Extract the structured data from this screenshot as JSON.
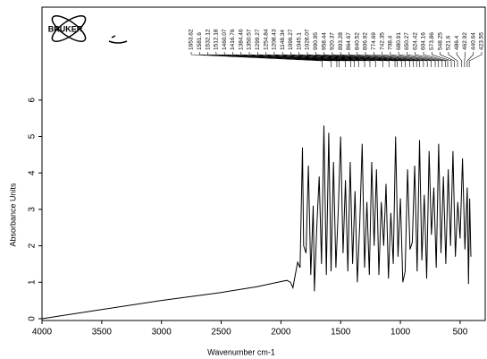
{
  "chart_data": {
    "type": "line",
    "logo": "BRUKER",
    "xlabel": "Wavenumber cm-1",
    "ylabel": "Absorbance Units",
    "xlim": [
      4000,
      290
    ],
    "ylim": [
      -0.05,
      8.55
    ],
    "xticks": [
      4000,
      3500,
      3000,
      2500,
      2000,
      1500,
      1000,
      500
    ],
    "yticks": [
      0,
      1,
      2,
      3,
      4,
      5,
      6
    ],
    "color": "#000000",
    "x": [
      4000,
      3800,
      3500,
      3000,
      2500,
      2200,
      2000,
      1950,
      1920,
      1900,
      1880,
      1860,
      1840,
      1820,
      1810,
      1790,
      1770,
      1750,
      1730,
      1720,
      1700,
      1680,
      1660,
      1640,
      1620,
      1600,
      1580,
      1560,
      1540,
      1520,
      1500,
      1480,
      1460,
      1440,
      1420,
      1400,
      1380,
      1360,
      1340,
      1320,
      1300,
      1280,
      1260,
      1240,
      1220,
      1200,
      1180,
      1160,
      1140,
      1120,
      1100,
      1080,
      1060,
      1040,
      1020,
      1000,
      980,
      960,
      940,
      920,
      900,
      880,
      860,
      840,
      820,
      800,
      780,
      760,
      740,
      720,
      700,
      680,
      660,
      640,
      620,
      600,
      580,
      560,
      540,
      520,
      500,
      480,
      460,
      440,
      430,
      420,
      410
    ],
    "values": [
      0,
      0.1,
      0.25,
      0.5,
      0.72,
      0.88,
      1.02,
      1.05,
      1.0,
      0.85,
      1.2,
      1.55,
      1.4,
      4.7,
      2.0,
      1.8,
      4.2,
      1.2,
      3.1,
      0.75,
      2.5,
      3.9,
      1.5,
      5.3,
      1.2,
      5.1,
      1.3,
      4.3,
      1.4,
      3.0,
      5.0,
      1.8,
      3.8,
      1.3,
      4.3,
      1.5,
      3.5,
      1.0,
      2.6,
      4.8,
      1.4,
      3.2,
      1.2,
      4.3,
      2.0,
      4.1,
      1.2,
      3.2,
      2.0,
      3.7,
      1.1,
      2.9,
      1.5,
      5.0,
      1.7,
      3.3,
      1.0,
      1.3,
      4.1,
      1.9,
      2.1,
      4.2,
      1.3,
      4.9,
      1.6,
      3.4,
      1.1,
      4.6,
      2.3,
      3.6,
      1.4,
      4.8,
      1.8,
      3.9,
      1.5,
      4.1,
      2.0,
      4.6,
      1.7,
      3.2,
      2.2,
      4.4,
      1.9,
      3.6,
      0.95,
      3.3,
      1.7
    ],
    "peak_labels": [
      1653.62,
      1581.6,
      1532.12,
      1512.18,
      1460.07,
      1416.76,
      1384.46,
      1350.57,
      1299.27,
      1254.84,
      1208.43,
      1148.34,
      1096.27,
      1045.1,
      1028.07,
      990.95,
      958.44,
      920.37,
      893.28,
      864.67,
      840.52,
      806.92,
      774.69,
      742.35,
      708.4,
      680.91,
      650.27,
      624.42,
      604.16,
      573.86,
      548.25,
      521.6,
      486.4,
      462.92,
      440.64,
      423.55
    ]
  }
}
